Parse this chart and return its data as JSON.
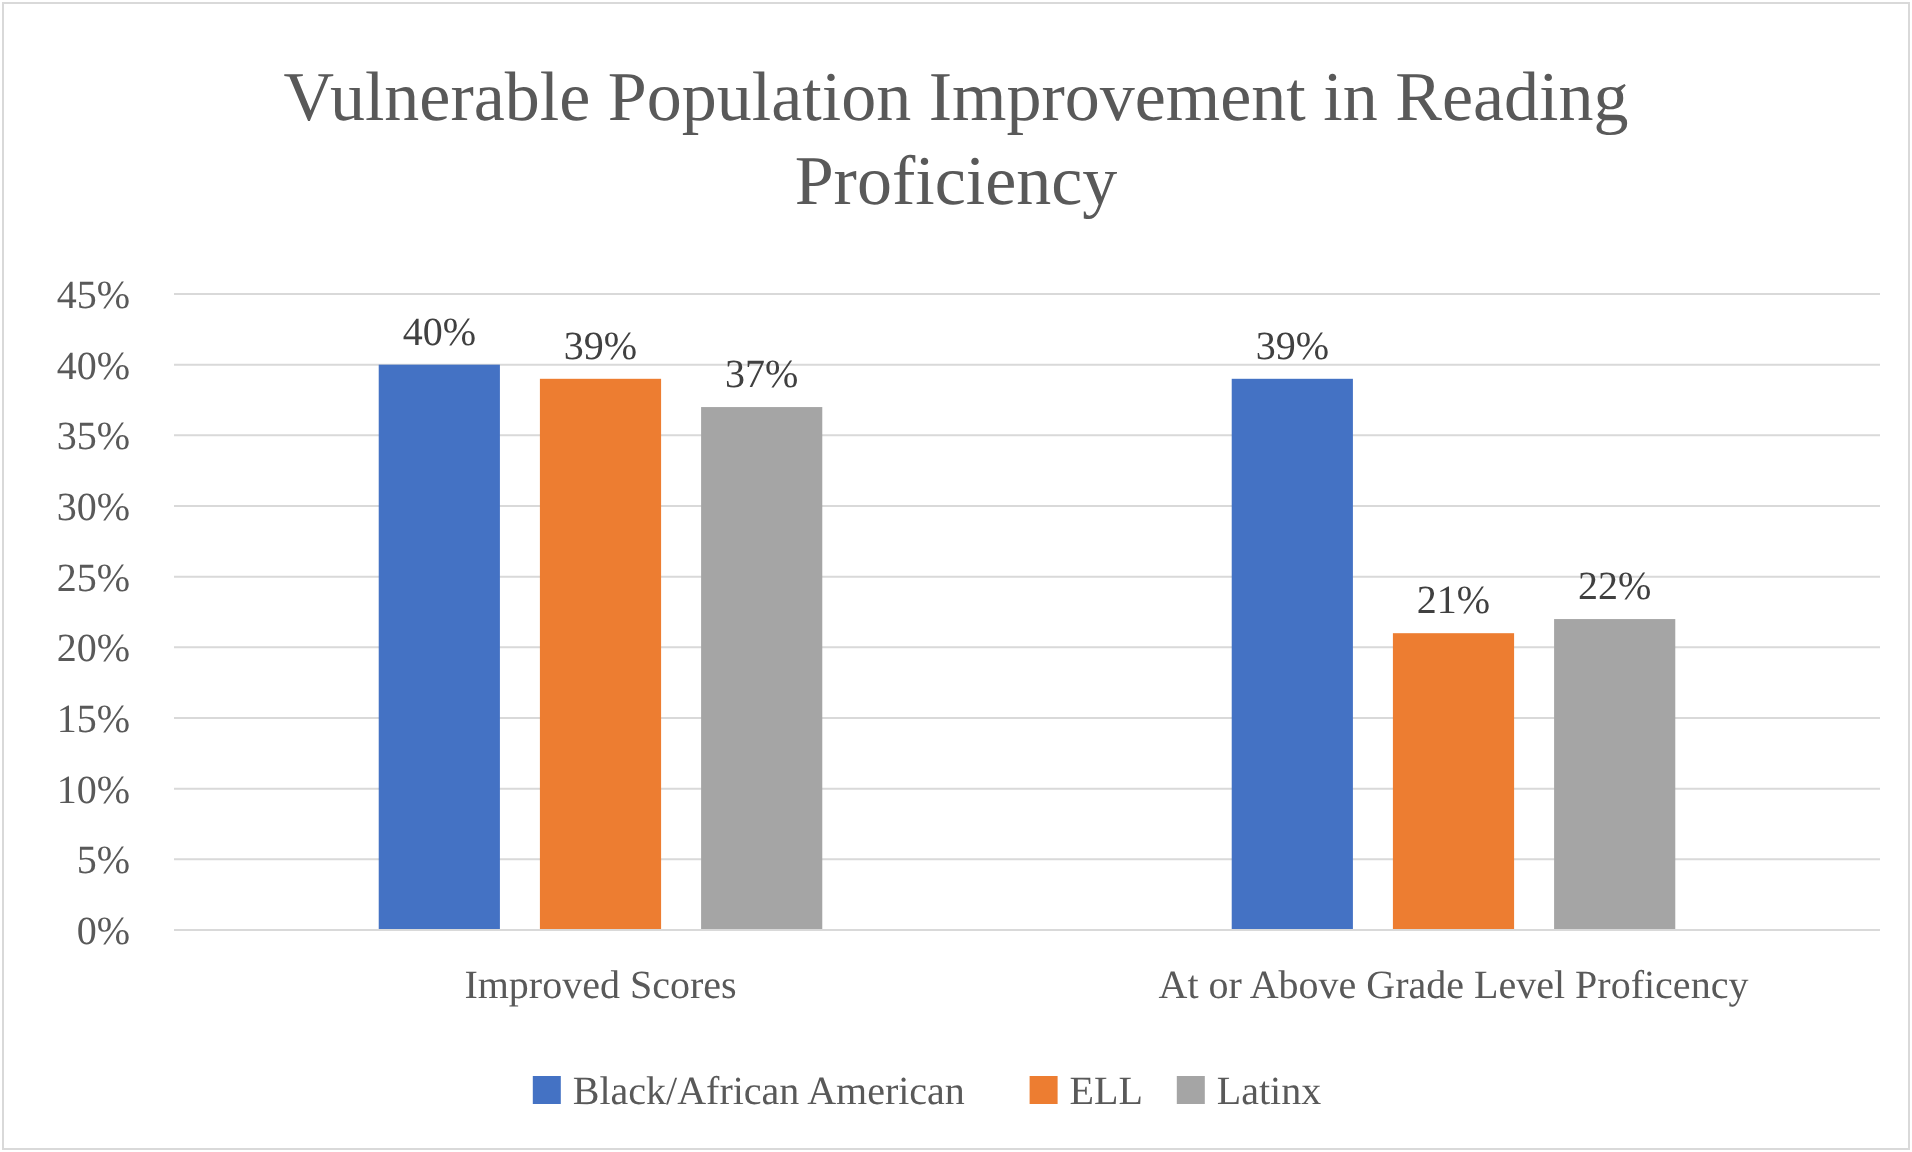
{
  "chart_data": {
    "type": "bar",
    "title": "Vulnerable Population Improvement in Reading Proficiency",
    "categories": [
      "Improved Scores",
      "At or Above Grade Level Proficency"
    ],
    "series": [
      {
        "name": "Black/African American",
        "color": "#4472c4",
        "values": [
          40,
          39
        ],
        "value_labels": [
          "40%",
          "39%"
        ]
      },
      {
        "name": "ELL",
        "color": "#ed7d31",
        "values": [
          39,
          21
        ],
        "value_labels": [
          "39%",
          "21%"
        ]
      },
      {
        "name": "Latinx",
        "color": "#a5a5a5",
        "values": [
          37,
          22
        ],
        "value_labels": [
          "37%",
          "22%"
        ]
      }
    ],
    "ylim": [
      0,
      45
    ],
    "yticks": [
      {
        "value": 0,
        "label": "0%"
      },
      {
        "value": 5,
        "label": "5%"
      },
      {
        "value": 10,
        "label": "10%"
      },
      {
        "value": 15,
        "label": "15%"
      },
      {
        "value": 20,
        "label": "20%"
      },
      {
        "value": 25,
        "label": "25%"
      },
      {
        "value": 30,
        "label": "30%"
      },
      {
        "value": 35,
        "label": "35%"
      },
      {
        "value": 40,
        "label": "40%"
      },
      {
        "value": 45,
        "label": "45%"
      }
    ],
    "grid": "y",
    "legend": "bottom"
  }
}
